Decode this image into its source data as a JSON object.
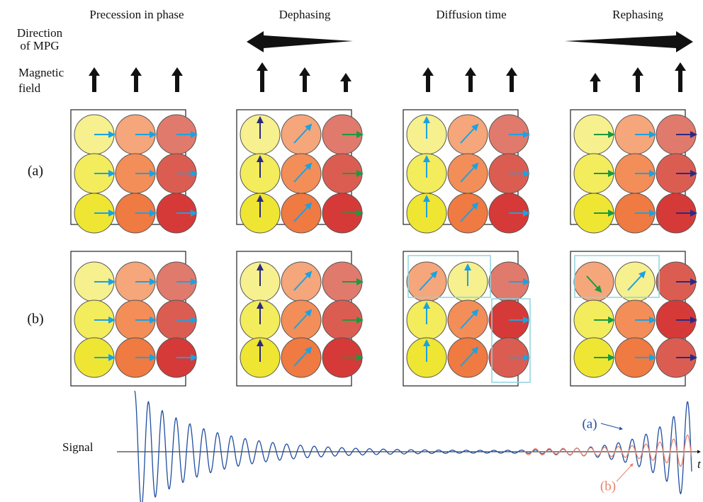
{
  "columns": [
    "Precession in phase",
    "Dephasing",
    "Diffusion time",
    "Rephasing"
  ],
  "row_labels": {
    "mpg": [
      "Direction",
      "of MPG"
    ],
    "field": [
      "Magnetic",
      "field"
    ]
  },
  "rows": [
    "(a)",
    "(b)"
  ],
  "signal": {
    "label": "Signal",
    "curve_labels": [
      "(a)",
      "(b)"
    ],
    "axis_label": "t"
  }
}
